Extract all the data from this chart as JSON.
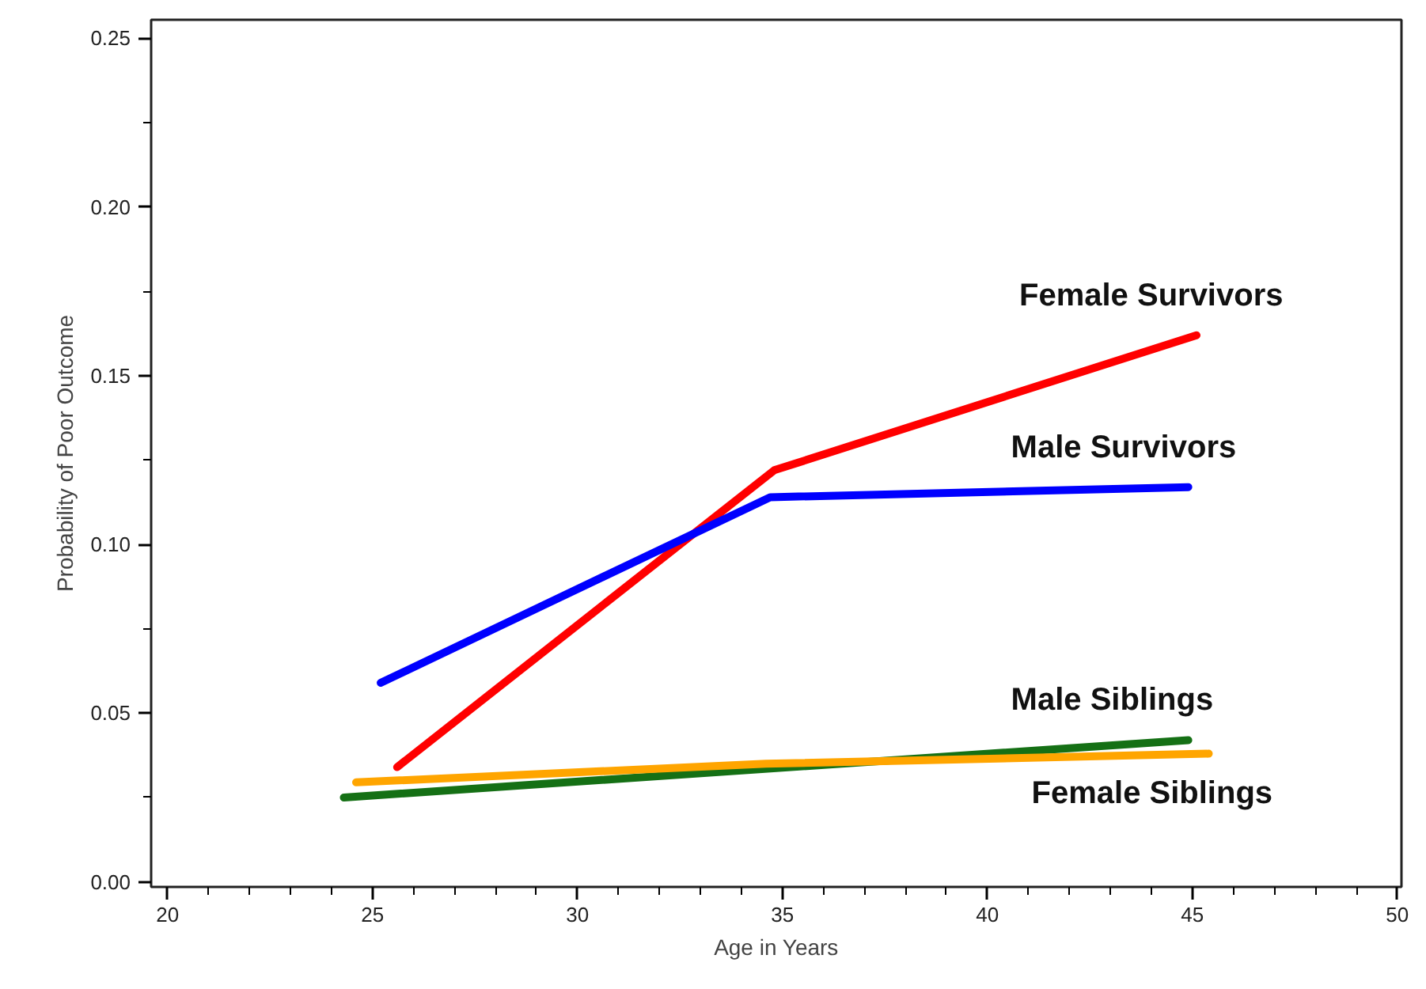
{
  "chart_data": {
    "type": "line",
    "xlabel": "Age in Years",
    "ylabel": "Probability of Poor Outcome",
    "xlim": [
      19.6,
      50.1
    ],
    "ylim": [
      -0.0015,
      0.2555
    ],
    "xticks": [
      20,
      25,
      30,
      35,
      40,
      45,
      50
    ],
    "yticks": [
      {
        "value": 0,
        "label": "0.00"
      },
      {
        "value": 0.05,
        "label": "0.05"
      },
      {
        "value": 0.1,
        "label": "0.10"
      },
      {
        "value": 0.15,
        "label": "0.15"
      },
      {
        "value": 0.2,
        "label": "0.20"
      },
      {
        "value": 0.25,
        "label": "0.25"
      }
    ],
    "grid": false,
    "marker": "none",
    "line_style": "solid",
    "series": [
      {
        "name": "Female Survivors",
        "color": "#ff0000",
        "x": [
          25.6,
          34.8,
          45.1
        ],
        "values": [
          0.034,
          0.122,
          0.162
        ]
      },
      {
        "name": "Male Survivors",
        "color": "#0000ff",
        "x": [
          25.2,
          34.7,
          44.9
        ],
        "values": [
          0.059,
          0.114,
          0.117
        ]
      },
      {
        "name": "Male Siblings",
        "color": "#157015",
        "x": [
          24.3,
          44.9
        ],
        "values": [
          0.025,
          0.042
        ]
      },
      {
        "name": "Female Siblings",
        "color": "#ffa500",
        "x": [
          24.6,
          34.6,
          45.4
        ],
        "values": [
          0.0295,
          0.035,
          0.038
        ]
      }
    ]
  }
}
